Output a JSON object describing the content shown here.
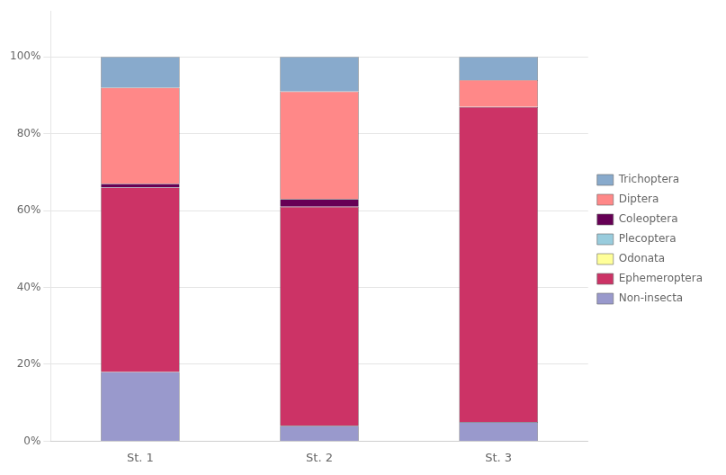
{
  "chart_data": {
    "type": "bar",
    "stacked": true,
    "categories": [
      "St. 1",
      "St. 2",
      "St. 3"
    ],
    "series": [
      {
        "name": "Non-insecta",
        "color": "#9999cc",
        "values": [
          18.0,
          4.0,
          5.0
        ]
      },
      {
        "name": "Ephemeroptera",
        "color": "#cc3366",
        "values": [
          48.0,
          57.0,
          82.0
        ]
      },
      {
        "name": "Odonata",
        "color": "#ffff99",
        "values": [
          0.0,
          0.0,
          0.0
        ]
      },
      {
        "name": "Plecoptera",
        "color": "#99ccdd",
        "values": [
          0.0,
          0.0,
          0.0
        ]
      },
      {
        "name": "Coleoptera",
        "color": "#660055",
        "values": [
          1.0,
          2.0,
          0.0
        ]
      },
      {
        "name": "Diptera",
        "color": "#ff8888",
        "values": [
          25.0,
          28.0,
          7.0
        ]
      },
      {
        "name": "Trichoptera",
        "color": "#88aacc",
        "values": [
          8.0,
          9.0,
          6.0
        ]
      }
    ],
    "ylim": [
      0,
      112
    ],
    "yticks": [
      {
        "value": 0,
        "label": "0%"
      },
      {
        "value": 20,
        "label": "20%"
      },
      {
        "value": 40,
        "label": "40%"
      },
      {
        "value": 60,
        "label": "60%"
      },
      {
        "value": 80,
        "label": "80%"
      },
      {
        "value": 100,
        "label": "100%"
      }
    ],
    "grid": true,
    "legend": "right"
  }
}
